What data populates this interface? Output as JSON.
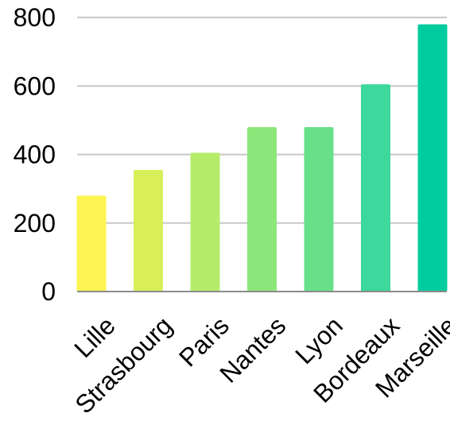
{
  "chart_data": {
    "type": "bar",
    "categories": [
      "Lille",
      "Strasbourg",
      "Paris",
      "Nantes",
      "Lyon",
      "Bordeaux",
      "Marseille"
    ],
    "values": [
      280,
      355,
      405,
      480,
      480,
      605,
      780
    ],
    "colors": [
      "#fdf453",
      "#d9ef5a",
      "#b5ed6a",
      "#8de679",
      "#68e08a",
      "#3dd89c",
      "#00cc9f"
    ],
    "yticks": [
      0,
      200,
      400,
      600,
      800
    ],
    "ylim": [
      0,
      800
    ],
    "grid": true,
    "legend": "none"
  }
}
